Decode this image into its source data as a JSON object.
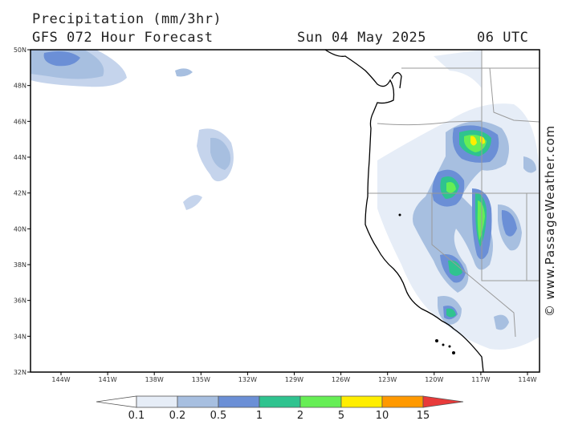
{
  "header": {
    "title": "Precipitation (mm/3hr)",
    "forecast": "GFS 072 Hour Forecast",
    "date": "Sun 04 May 2025",
    "time": "06 UTC"
  },
  "map": {
    "lat_labels": [
      "50N",
      "48N",
      "46N",
      "44N",
      "42N",
      "40N",
      "38N",
      "36N",
      "34N",
      "32N"
    ],
    "lon_labels": [
      "144W",
      "141W",
      "138W",
      "135W",
      "132W",
      "129W",
      "126W",
      "123W",
      "120W",
      "117W",
      "114W"
    ]
  },
  "colorbar": {
    "labels": [
      "0.1",
      "0.2",
      "0.5",
      "1",
      "2",
      "5",
      "10",
      "15"
    ],
    "colors": [
      "#ffffff",
      "#e6edf7",
      "#a7bfe0",
      "#6b8fd6",
      "#2fc38f",
      "#66ee55",
      "#ffee00",
      "#ff9900",
      "#e83a3a"
    ]
  },
  "copyright": "© www.PassageWeather.com"
}
